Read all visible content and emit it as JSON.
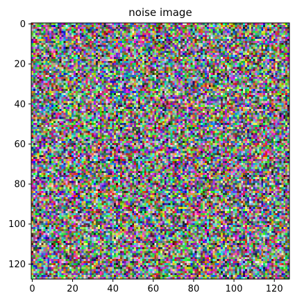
{
  "chart_data": {
    "type": "heatmap",
    "title": "noise  image",
    "xlabel": "",
    "ylabel": "",
    "image_size": [
      128,
      128
    ],
    "channels": "rgb",
    "value_distribution": "random uniform",
    "xlim": [
      0,
      128
    ],
    "ylim": [
      128,
      0
    ],
    "y_axis_inverted": true,
    "x_ticks": [
      0,
      20,
      40,
      60,
      80,
      100,
      120
    ],
    "y_ticks": [
      0,
      20,
      40,
      60,
      80,
      100,
      120
    ],
    "x_tick_labels": [
      "0",
      "20",
      "40",
      "60",
      "80",
      "100",
      "120"
    ],
    "y_tick_labels": [
      "0",
      "20",
      "40",
      "60",
      "80",
      "100",
      "120"
    ],
    "grid": false,
    "legend": "none"
  }
}
